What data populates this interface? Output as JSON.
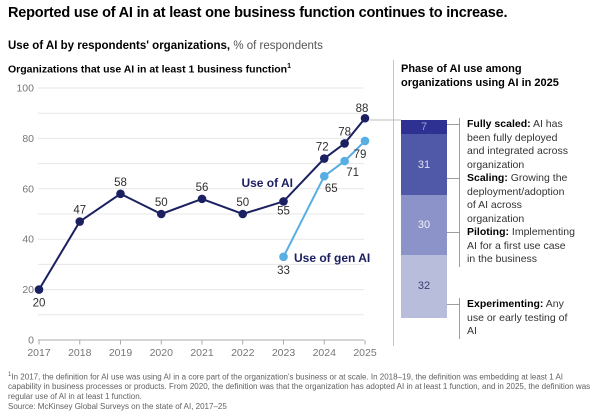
{
  "title": "Reported use of AI in at least one business function continues to increase.",
  "subtitle": {
    "bold": "Use of AI by respondents' organizations,",
    "regular": "% of respondents"
  },
  "line_chart": {
    "heading": "Organizations that use AI in at least 1 business function",
    "heading_superscript": "1"
  },
  "chart_data": [
    {
      "type": "line",
      "title": "Organizations that use AI in at least 1 business function",
      "xlabel": "",
      "ylabel": "% of respondents",
      "ylim": [
        0,
        100
      ],
      "grid": true,
      "grid_step": 10,
      "x_tick_labels": [
        "2017",
        "2018",
        "2019",
        "2020",
        "2021",
        "2022",
        "2023",
        "2024",
        "2025"
      ],
      "y_tick_labels": [
        "0",
        "20",
        "40",
        "60",
        "80",
        "100"
      ],
      "series": [
        {
          "name": "Use of AI",
          "color": "#1b2060",
          "x": [
            2017,
            2018,
            2019,
            2020,
            2021,
            2022,
            2023,
            2024,
            2024.5,
            2025
          ],
          "values": [
            20,
            47,
            58,
            50,
            56,
            50,
            55,
            72,
            78,
            88
          ]
        },
        {
          "name": "Use of gen AI",
          "color": "#57aee2",
          "x": [
            2023,
            2024,
            2024.5,
            2025
          ],
          "values": [
            33,
            65,
            71,
            79
          ]
        }
      ]
    },
    {
      "type": "bar",
      "stacked": true,
      "title": "Phase of AI use among organizations using AI in 2025",
      "categories": [
        "2025"
      ],
      "series": [
        {
          "name": "Fully scaled",
          "values": [
            7
          ],
          "color": "#2e3191"
        },
        {
          "name": "Scaling",
          "values": [
            31
          ],
          "color": "#5059a8"
        },
        {
          "name": "Piloting",
          "values": [
            30
          ],
          "color": "#8b93c8"
        },
        {
          "name": "Experimenting",
          "values": [
            32
          ],
          "color": "#b8bddc"
        }
      ]
    }
  ],
  "right_panel": {
    "title": "Phase of AI use among organizations using AI in 2025",
    "phases": [
      {
        "value": 7,
        "term": "Fully scaled:",
        "description": "AI has been fully deployed and integrated across organization",
        "color": "#2e3191",
        "value_color": "#9aa3d6"
      },
      {
        "value": 31,
        "term": "Scaling:",
        "description": "Growing the deployment/adoption of AI across organization",
        "color": "#5059a8",
        "value_color": "#dfe2f1"
      },
      {
        "value": 30,
        "term": "Piloting:",
        "description": "Implementing AI for a first use case in the business",
        "color": "#8b93c8",
        "value_color": "#f0f1f8"
      },
      {
        "value": 32,
        "term": "Experimenting:",
        "description": "Any use or early testing of AI",
        "color": "#b8bddc",
        "value_color": "#3a406f"
      }
    ]
  },
  "footnotes": {
    "note1_superscript": "1",
    "note1": "In 2017, the definition for AI use was using AI in a core part of the organization's business or at scale. In 2018–19, the definition was embedding at least 1 AI capability in business processes or products. From 2020, the definition was that the organization has adopted AI in at least 1 function, and in 2025, the definition was regular use of AI in at least 1 function.",
    "source": "Source: McKinsey Global Surveys on the state of AI, 2017–25"
  }
}
